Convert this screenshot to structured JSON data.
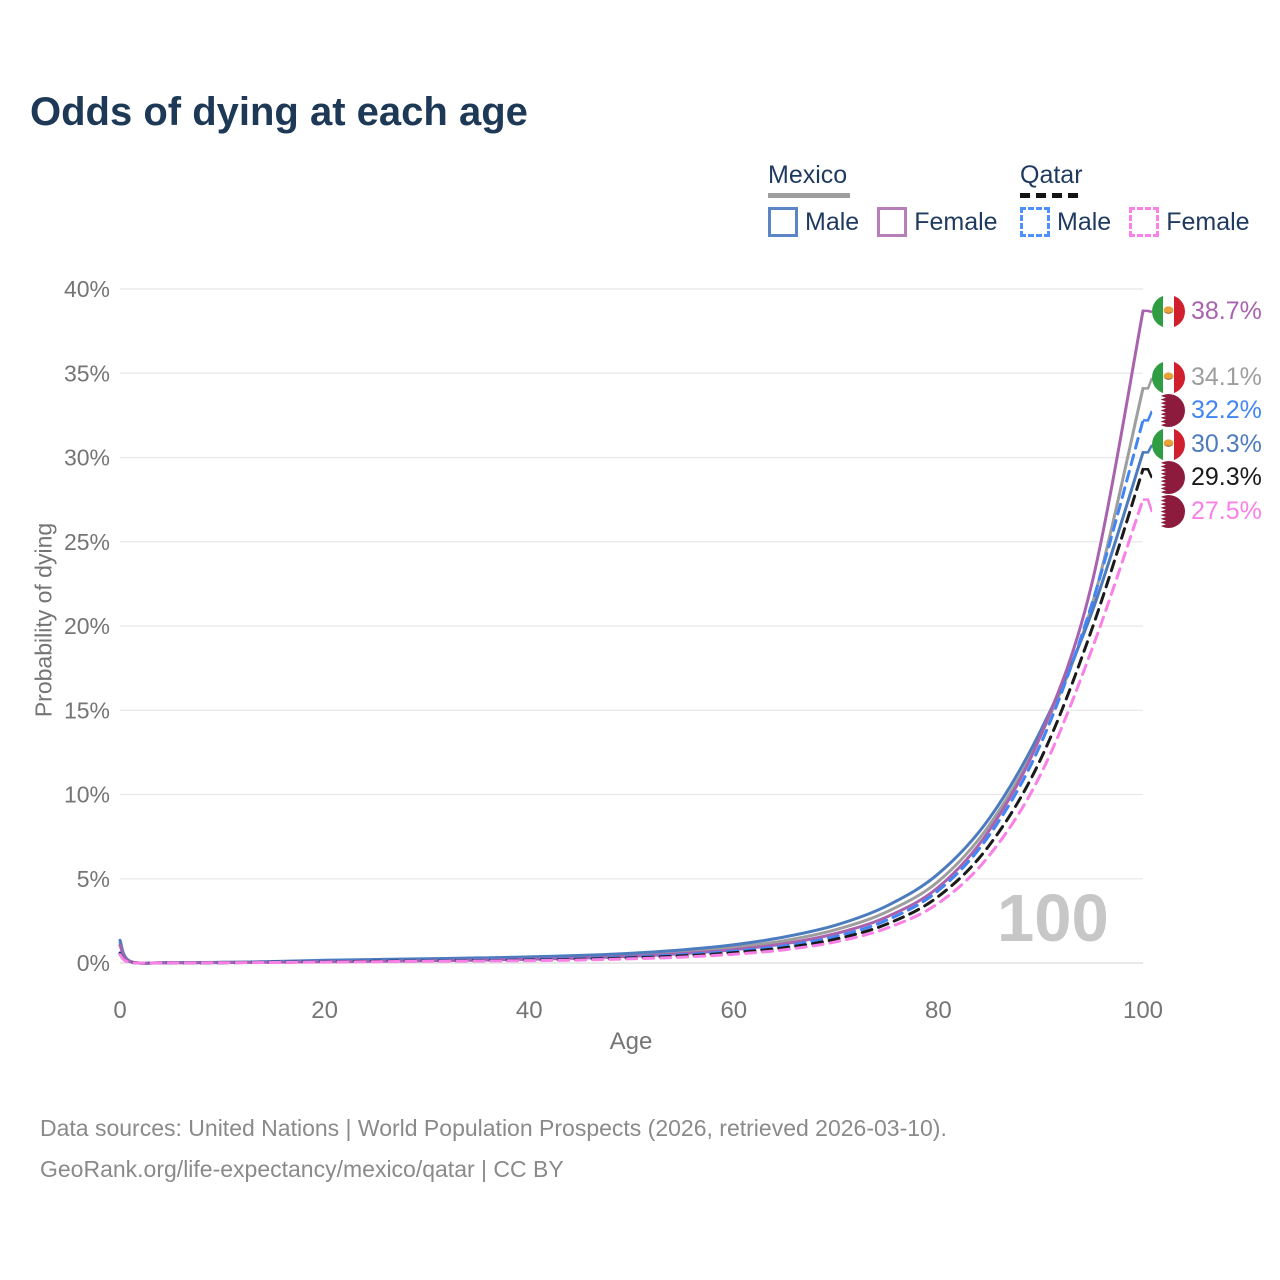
{
  "title": "Odds of dying at each age",
  "legend": {
    "mexico": {
      "label": "Mexico",
      "male": "Male",
      "female": "Female",
      "line_color": "#9e9e9e",
      "male_color": "#5b85c6",
      "female_color": "#b77fb9"
    },
    "qatar": {
      "label": "Qatar",
      "male": "Male",
      "female": "Female",
      "line_color": "#1a1a1a",
      "male_color": "#4d90fe",
      "female_color": "#fb80e8"
    }
  },
  "axes": {
    "xlabel": "Age",
    "ylabel": "Probability of dying"
  },
  "watermark": "100",
  "footer": {
    "line1": "Data sources: United Nations | World Population Prospects (2026, retrieved 2026-03-10).",
    "line2": "GeoRank.org/life-expectancy/mexico/qatar | CC BY"
  },
  "chart_data": {
    "type": "line",
    "title": "Odds of dying at each age",
    "xlabel": "Age",
    "ylabel": "Probability of dying",
    "xlim": [
      0,
      100
    ],
    "ylim": [
      0,
      40
    ],
    "xticks": [
      0,
      20,
      40,
      60,
      80,
      100
    ],
    "yticks": [
      0,
      5,
      10,
      15,
      20,
      25,
      30,
      35,
      40
    ],
    "ytick_suffix": "%",
    "grid": true,
    "legend_position": "top-right",
    "x": [
      0,
      1,
      5,
      10,
      15,
      20,
      25,
      30,
      35,
      40,
      45,
      50,
      55,
      60,
      65,
      70,
      75,
      80,
      85,
      90,
      95,
      100
    ],
    "series": [
      {
        "name": "Mexico Female",
        "country": "Mexico",
        "sex": "Female",
        "flag": "mx",
        "color": "#a963ae",
        "dash": false,
        "end_label": "38.7%",
        "end": 38.7,
        "values": [
          1.05,
          0.08,
          0.02,
          0.025,
          0.05,
          0.07,
          0.1,
          0.13,
          0.17,
          0.22,
          0.29,
          0.4,
          0.56,
          0.79,
          1.15,
          1.75,
          2.75,
          4.5,
          7.9,
          13.5,
          22.5,
          38.7
        ]
      },
      {
        "name": "Mexico Both sexes",
        "country": "Mexico",
        "sex": "Both",
        "flag": "mx",
        "color": "#9e9e9e",
        "dash": false,
        "end_label": "34.1%",
        "end": 34.1,
        "values": [
          1.2,
          0.09,
          0.025,
          0.033,
          0.07,
          0.12,
          0.16,
          0.19,
          0.23,
          0.28,
          0.36,
          0.48,
          0.66,
          0.92,
          1.33,
          1.98,
          3.05,
          4.85,
          8.2,
          13.5,
          21.2,
          34.1
        ]
      },
      {
        "name": "Qatar Male",
        "country": "Qatar",
        "sex": "Male",
        "flag": "qa",
        "color": "#4285f4",
        "dash": true,
        "end_label": "32.2%",
        "end": 32.2,
        "values": [
          0.6,
          0.05,
          0.015,
          0.02,
          0.05,
          0.09,
          0.12,
          0.14,
          0.17,
          0.2,
          0.26,
          0.35,
          0.49,
          0.7,
          1.02,
          1.58,
          2.55,
          4.3,
          7.6,
          13.0,
          21.3,
          32.2
        ]
      },
      {
        "name": "Mexico Male",
        "country": "Mexico",
        "sex": "Male",
        "flag": "mx",
        "color": "#4d7cbe",
        "dash": false,
        "end_label": "30.3%",
        "end": 30.3,
        "values": [
          1.35,
          0.1,
          0.03,
          0.04,
          0.09,
          0.16,
          0.21,
          0.25,
          0.3,
          0.36,
          0.45,
          0.58,
          0.78,
          1.08,
          1.55,
          2.25,
          3.4,
          5.3,
          8.6,
          13.8,
          20.8,
          30.3
        ]
      },
      {
        "name": "Qatar Both sexes",
        "country": "Qatar",
        "sex": "Both",
        "flag": "qa",
        "color": "#1a1a1a",
        "dash": true,
        "end_label": "29.3%",
        "end": 29.3,
        "values": [
          0.55,
          0.045,
          0.013,
          0.018,
          0.04,
          0.07,
          0.1,
          0.12,
          0.14,
          0.17,
          0.22,
          0.3,
          0.42,
          0.61,
          0.91,
          1.42,
          2.32,
          3.95,
          7.0,
          12.1,
          19.8,
          29.3
        ]
      },
      {
        "name": "Qatar Female",
        "country": "Qatar",
        "sex": "Female",
        "flag": "qa",
        "color": "#f980e6",
        "dash": true,
        "end_label": "27.5%",
        "end": 27.5,
        "values": [
          0.5,
          0.04,
          0.012,
          0.016,
          0.03,
          0.055,
          0.08,
          0.1,
          0.12,
          0.14,
          0.18,
          0.25,
          0.35,
          0.52,
          0.79,
          1.26,
          2.08,
          3.55,
          6.4,
          11.2,
          18.6,
          27.5
        ]
      }
    ],
    "age_counter": "100"
  }
}
